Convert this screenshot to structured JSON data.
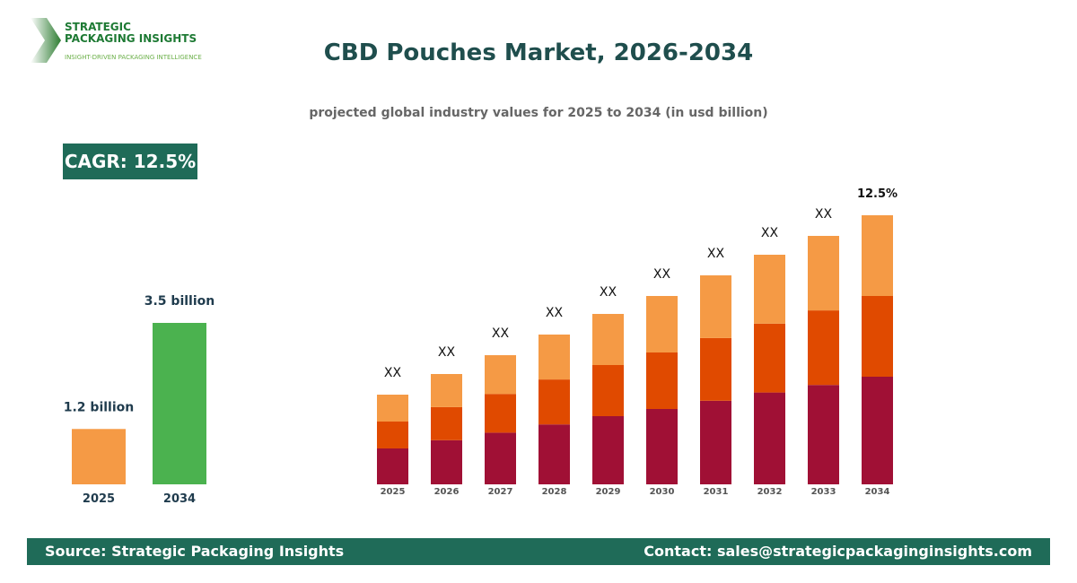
{
  "header": {
    "logo_line1": "STRATEGIC",
    "logo_line2": "PACKAGING INSIGHTS",
    "logo_tagline": "INSIGHT-DRIVEN PACKAGING INTELLIGENCE",
    "title": "CBD Pouches Market, 2026-2034",
    "subtitle": "projected global industry values for 2025 to 2034 (in usd billion)"
  },
  "cagr": "CAGR: 12.5%",
  "footer": {
    "source": "Source: Strategic Packaging Insights",
    "contact": "Contact: sales@strategicpackaginginsights.com"
  },
  "chart_data": [
    {
      "type": "bar",
      "categories": [
        "2025",
        "2034"
      ],
      "values": [
        1.2,
        3.5
      ],
      "data_labels": [
        "1.2 billion",
        "3.5 billion"
      ],
      "colors": [
        "#f59a45",
        "#4bb24f"
      ]
    },
    {
      "type": "bar",
      "stacked": true,
      "categories": [
        "2025",
        "2026",
        "2027",
        "2028",
        "2029",
        "2030",
        "2031",
        "2032",
        "2033",
        "2034"
      ],
      "totals_relative": [
        100,
        123,
        144,
        167,
        190,
        210,
        233,
        256,
        277,
        300
      ],
      "segment_shares": [
        0.4,
        0.3,
        0.3
      ],
      "colors": [
        "#a01035",
        "#e04a00",
        "#f59a45"
      ],
      "data_labels": [
        "XX",
        "XX",
        "XX",
        "XX",
        "XX",
        "XX",
        "XX",
        "XX",
        "XX",
        "12.5%"
      ]
    }
  ]
}
